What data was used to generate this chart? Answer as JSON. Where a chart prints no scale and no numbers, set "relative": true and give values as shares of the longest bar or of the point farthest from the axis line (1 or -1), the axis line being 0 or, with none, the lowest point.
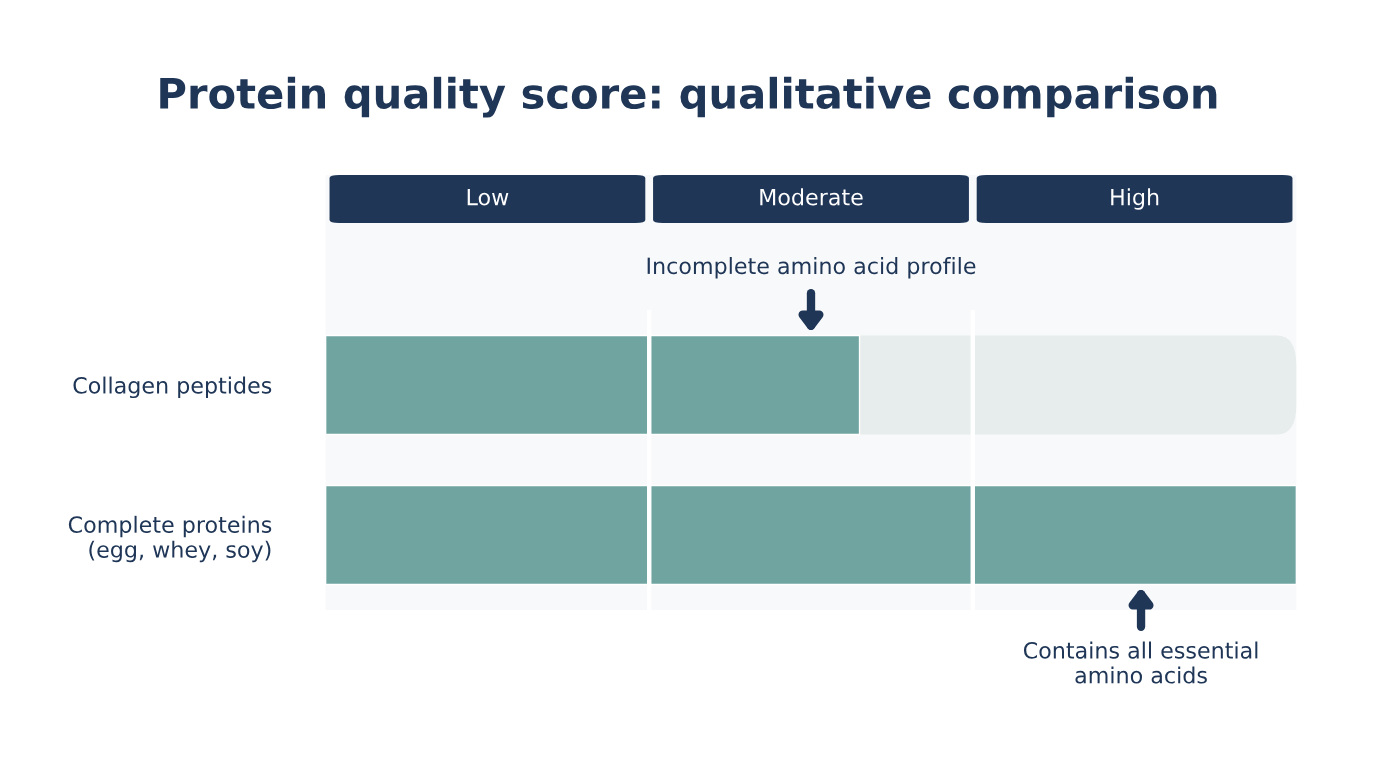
{
  "chart_data": {
    "type": "bar",
    "orientation": "horizontal",
    "relative": true,
    "title": "Protein quality score: qualitative comparison",
    "categories": [
      "Collagen peptides",
      "Complete proteins\n(egg, whey, soy)"
    ],
    "values": [
      0.55,
      1.0
    ],
    "color": "#6fa4a1",
    "bands": [
      {
        "axis": "x",
        "from": 0,
        "to": 0.3333,
        "label": "Low",
        "color": "#1f3657"
      },
      {
        "axis": "x",
        "from": 0.3333,
        "to": 0.6667,
        "label": "Moderate",
        "color": "#1f3657"
      },
      {
        "axis": "x",
        "from": 0.6667,
        "to": 1.0,
        "label": "High",
        "color": "#1f3657"
      }
    ],
    "annotations": [
      "Incomplete amino acid profile",
      "Contains all essential\namino acids"
    ],
    "grid": false,
    "legend": false
  }
}
